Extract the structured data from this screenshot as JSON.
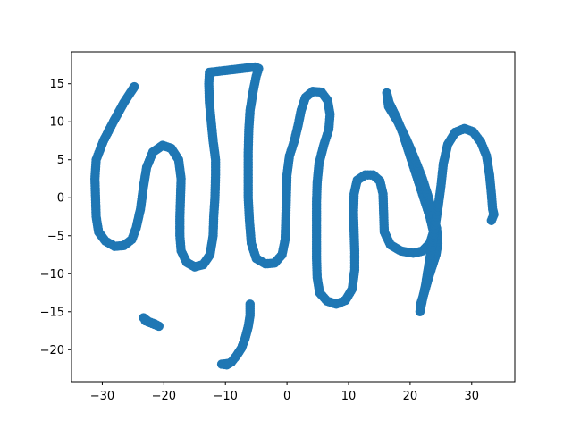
{
  "chart_data": {
    "type": "scatter",
    "title": "",
    "xlabel": "",
    "ylabel": "",
    "xlim": [
      -35,
      37
    ],
    "ylim": [
      -24.2,
      19.2
    ],
    "xticks": [
      -30,
      -20,
      -10,
      0,
      10,
      20,
      30
    ],
    "yticks": [
      -20,
      -15,
      -10,
      -5,
      0,
      5,
      10,
      15
    ],
    "tick_labels_x": [
      "−30",
      "−20",
      "−10",
      "0",
      "10",
      "20",
      "30"
    ],
    "tick_labels_y": [
      "−20",
      "−15",
      "−10",
      "−5",
      "0",
      "5",
      "10",
      "15"
    ],
    "grid": false,
    "legend": "none",
    "marker_color": "#1f77b4",
    "series": [
      {
        "values": [
          [
            -24.8,
            14.6
          ],
          [
            -26.5,
            12.5
          ],
          [
            -28.2,
            10.0
          ],
          [
            -29.8,
            7.5
          ],
          [
            -31.0,
            5.0
          ],
          [
            -31.2,
            2.5
          ],
          [
            -31.1,
            0.0
          ],
          [
            -31.0,
            -2.5
          ],
          [
            -30.6,
            -4.5
          ],
          [
            -29.5,
            -5.7
          ],
          [
            -28.0,
            -6.4
          ],
          [
            -26.5,
            -6.3
          ],
          [
            -25.2,
            -5.5
          ],
          [
            -24.5,
            -4.0
          ],
          [
            -23.8,
            -1.5
          ],
          [
            -23.3,
            1.5
          ],
          [
            -22.8,
            4.0
          ],
          [
            -21.8,
            6.0
          ],
          [
            -20.2,
            6.9
          ],
          [
            -18.8,
            6.5
          ],
          [
            -17.6,
            5.0
          ],
          [
            -17.2,
            2.5
          ],
          [
            -17.3,
            0.0
          ],
          [
            -17.4,
            -2.5
          ],
          [
            -17.4,
            -5.0
          ],
          [
            -17.2,
            -7.0
          ],
          [
            -16.3,
            -8.5
          ],
          [
            -15.0,
            -9.1
          ],
          [
            -13.6,
            -8.8
          ],
          [
            -12.5,
            -7.5
          ],
          [
            -12.0,
            -5.0
          ],
          [
            -11.9,
            -2.5
          ],
          [
            -11.7,
            0.0
          ],
          [
            -11.6,
            3.0
          ],
          [
            -11.6,
            5.0
          ],
          [
            -12.0,
            7.5
          ],
          [
            -12.3,
            10.0
          ],
          [
            -12.6,
            12.5
          ],
          [
            -12.7,
            15.0
          ],
          [
            -12.6,
            16.5
          ],
          [
            -5.2,
            17.2
          ],
          [
            -4.6,
            17.0
          ],
          [
            -5.0,
            16.0
          ],
          [
            -5.5,
            14.0
          ],
          [
            -6.0,
            11.5
          ],
          [
            -6.2,
            9.0
          ],
          [
            -6.3,
            6.0
          ],
          [
            -6.3,
            3.0
          ],
          [
            -6.3,
            0.0
          ],
          [
            -6.1,
            -3.0
          ],
          [
            -5.8,
            -6.0
          ],
          [
            -5.0,
            -8.0
          ],
          [
            -3.5,
            -8.7
          ],
          [
            -2.0,
            -8.6
          ],
          [
            -0.8,
            -7.5
          ],
          [
            -0.3,
            -5.5
          ],
          [
            -0.2,
            -3.0
          ],
          [
            -0.1,
            0.0
          ],
          [
            0.0,
            3.0
          ],
          [
            0.4,
            5.5
          ],
          [
            1.2,
            7.5
          ],
          [
            1.8,
            9.5
          ],
          [
            2.3,
            11.5
          ],
          [
            3.0,
            13.2
          ],
          [
            4.2,
            14.0
          ],
          [
            5.6,
            13.9
          ],
          [
            6.6,
            12.8
          ],
          [
            7.0,
            11.0
          ],
          [
            6.8,
            9.0
          ],
          [
            6.0,
            7.0
          ],
          [
            5.2,
            4.5
          ],
          [
            4.9,
            2.0
          ],
          [
            4.8,
            -0.5
          ],
          [
            4.8,
            -3.0
          ],
          [
            4.8,
            -5.5
          ],
          [
            4.8,
            -8.0
          ],
          [
            4.9,
            -10.5
          ],
          [
            5.3,
            -12.5
          ],
          [
            6.5,
            -13.6
          ],
          [
            8.0,
            -14.0
          ],
          [
            9.5,
            -13.5
          ],
          [
            10.6,
            -12.0
          ],
          [
            11.0,
            -9.5
          ],
          [
            11.0,
            -7.0
          ],
          [
            10.9,
            -4.5
          ],
          [
            10.8,
            -2.0
          ],
          [
            10.9,
            0.5
          ],
          [
            11.4,
            2.3
          ],
          [
            12.7,
            3.0
          ],
          [
            14.0,
            3.0
          ],
          [
            15.1,
            2.2
          ],
          [
            15.6,
            0.5
          ],
          [
            15.7,
            -2.0
          ],
          [
            15.8,
            -4.5
          ],
          [
            16.8,
            -6.2
          ],
          [
            18.5,
            -7.0
          ],
          [
            20.5,
            -7.3
          ],
          [
            22.0,
            -7.0
          ],
          [
            23.2,
            -6.0
          ],
          [
            23.8,
            -4.5
          ],
          [
            23.2,
            -2.5
          ],
          [
            22.0,
            0.5
          ],
          [
            20.8,
            3.5
          ],
          [
            19.8,
            6.0
          ],
          [
            18.8,
            8.5
          ],
          [
            17.8,
            10.5
          ],
          [
            16.6,
            12.5
          ],
          [
            16.2,
            13.8
          ],
          [
            16.5,
            12.0
          ],
          [
            18.0,
            10.0
          ],
          [
            19.5,
            7.5
          ],
          [
            20.8,
            5.0
          ],
          [
            22.0,
            2.5
          ],
          [
            23.0,
            0.0
          ],
          [
            23.6,
            -2.0
          ],
          [
            24.3,
            -4.0
          ],
          [
            24.5,
            -6.0
          ],
          [
            24.2,
            -7.5
          ],
          [
            23.8,
            -8.5
          ],
          [
            23.0,
            -10.5
          ],
          [
            22.3,
            -12.5
          ],
          [
            21.7,
            -14.0
          ],
          [
            21.6,
            -15.0
          ],
          [
            22.5,
            -11.5
          ],
          [
            23.3,
            -7.5
          ],
          [
            23.9,
            -4.5
          ],
          [
            24.5,
            -1.5
          ],
          [
            25.0,
            1.5
          ],
          [
            25.4,
            4.5
          ],
          [
            26.1,
            7.0
          ],
          [
            27.3,
            8.6
          ],
          [
            28.8,
            9.1
          ],
          [
            30.2,
            8.7
          ],
          [
            31.5,
            7.3
          ],
          [
            32.4,
            5.5
          ],
          [
            32.9,
            3.0
          ],
          [
            33.2,
            0.5
          ],
          [
            33.4,
            -1.5
          ],
          [
            33.6,
            -2.2
          ],
          [
            33.2,
            -3.0
          ],
          [
            -23.3,
            -15.8
          ],
          [
            -22.5,
            -16.3
          ],
          [
            -21.5,
            -16.6
          ],
          [
            -20.8,
            -16.9
          ],
          [
            -23.0,
            -16.2
          ],
          [
            -6.0,
            -14.0
          ],
          [
            -6.0,
            -15.5
          ],
          [
            -6.3,
            -17.0
          ],
          [
            -6.8,
            -18.5
          ],
          [
            -7.4,
            -19.8
          ],
          [
            -8.2,
            -20.8
          ],
          [
            -9.0,
            -21.6
          ],
          [
            -9.8,
            -22.0
          ],
          [
            -10.6,
            -21.9
          ],
          [
            -9.4,
            -21.8
          ]
        ]
      }
    ]
  }
}
